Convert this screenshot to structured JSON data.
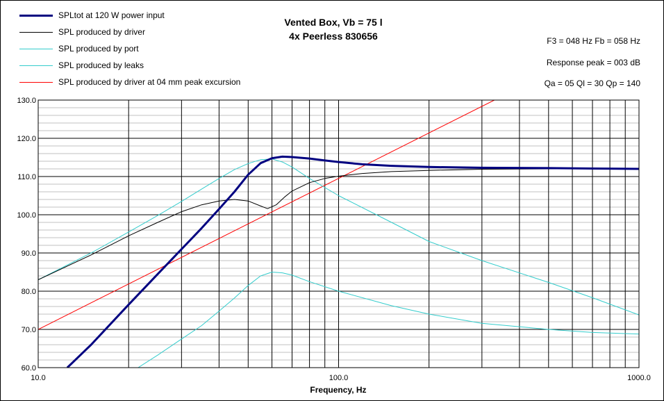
{
  "header": {
    "title_line1": "Vented Box, Vb = 75 l",
    "title_line2": "4x Peerless 830656",
    "info_f": "F3 = 048 Hz  Fb = 058 Hz",
    "info_peak": "Response peak = 003 dB",
    "info_q": "Qa = 05  Ql = 30  Qp = 140"
  },
  "legend": [
    {
      "label": "SPLtot at 120 W power input",
      "color": "#000080",
      "width": 3
    },
    {
      "label": "SPL produced by driver",
      "color": "#000000",
      "width": 1
    },
    {
      "label": "SPL produced by port",
      "color": "#33cccc",
      "width": 1
    },
    {
      "label": "SPL produced by leaks",
      "color": "#33cccc",
      "width": 1
    },
    {
      "label": "SPL produced by driver at 04 mm peak excursion",
      "color": "#ff0000",
      "width": 1
    }
  ],
  "chart_data": {
    "type": "line",
    "title": "Vented Box, Vb = 75 l",
    "subtitle": "4x Peerless 830656",
    "xlabel": "Frequency, Hz",
    "ylabel": "",
    "xscale": "log",
    "xlim": [
      10,
      1000
    ],
    "ylim": [
      60,
      130
    ],
    "x_ticks": [
      "10.0",
      "100.0",
      "1000.0"
    ],
    "y_ticks": [
      "60.0",
      "70.0",
      "80.0",
      "90.0",
      "100.0",
      "110.0",
      "120.0",
      "130.0"
    ],
    "grid": true,
    "series": [
      {
        "name": "SPLtot at 120 W power input",
        "x": [
          12.5,
          15,
          20,
          25,
          30,
          35,
          40,
          45,
          50,
          55,
          60,
          65,
          70,
          80,
          90,
          100,
          120,
          150,
          200,
          300,
          500,
          700,
          1000
        ],
        "y": [
          60,
          66,
          76.5,
          84.5,
          91,
          96.5,
          101.5,
          106,
          110.5,
          113.5,
          114.8,
          115.2,
          115.1,
          114.7,
          114.2,
          113.8,
          113.2,
          112.8,
          112.5,
          112.3,
          112.2,
          112.1,
          112
        ]
      },
      {
        "name": "SPL produced by driver",
        "x": [
          10,
          15,
          20,
          25,
          30,
          35,
          40,
          45,
          50,
          55,
          58,
          62,
          66,
          70,
          80,
          90,
          100,
          120,
          150,
          200,
          300,
          500,
          1000
        ],
        "y": [
          83,
          89.5,
          94.5,
          98,
          100.8,
          102.6,
          103.6,
          104,
          103.6,
          102.3,
          101.6,
          102.6,
          104.6,
          106.2,
          108.4,
          109.5,
          110.1,
          110.8,
          111.3,
          111.6,
          111.9,
          112,
          112
        ]
      },
      {
        "name": "SPL produced by port",
        "x": [
          10,
          15,
          20,
          25,
          30,
          35,
          40,
          45,
          50,
          55,
          60,
          65,
          70,
          80,
          100,
          150,
          200,
          300,
          500,
          700,
          1000
        ],
        "y": [
          83,
          90,
          95.5,
          99.8,
          103.5,
          106.7,
          109.5,
          111.8,
          113.4,
          114.4,
          114.6,
          113.8,
          112.5,
          109.5,
          105,
          98,
          93,
          88,
          82.3,
          78.3,
          73.8
        ]
      },
      {
        "name": "SPL produced by leaks",
        "x": [
          21.5,
          25,
          30,
          35,
          40,
          45,
          50,
          55,
          60,
          65,
          70,
          80,
          100,
          150,
          200,
          300,
          500,
          700,
          1000
        ],
        "y": [
          60,
          63.3,
          67.5,
          71,
          74.8,
          78.2,
          81.5,
          84,
          85,
          84.8,
          84.2,
          82.5,
          80,
          76.2,
          74,
          71.6,
          70,
          69.2,
          68.8
        ]
      },
      {
        "name": "SPL produced by driver at 04 mm peak excursion",
        "x": [
          10,
          330
        ],
        "y": [
          70,
          130
        ]
      }
    ]
  }
}
